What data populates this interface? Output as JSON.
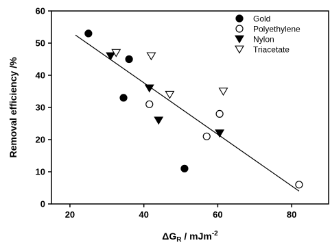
{
  "chart_data": {
    "type": "scatter",
    "title": "",
    "xlabel": "ΔG",
    "xlabel_sub": "R",
    "xlabel_unit": " / mJm",
    "xlabel_sup": "-2",
    "ylabel": "Removal efficiency /%",
    "xlim": [
      15,
      90
    ],
    "ylim": [
      0,
      60
    ],
    "x_ticks": [
      20,
      40,
      60,
      80
    ],
    "y_ticks": [
      0,
      10,
      20,
      30,
      40,
      50,
      60
    ],
    "grid": false,
    "legend_position": "top-right",
    "series": [
      {
        "name": "Gold",
        "marker": "circle-filled",
        "points": [
          [
            25,
            53
          ],
          [
            36,
            45
          ],
          [
            34.5,
            33
          ],
          [
            51,
            11
          ]
        ]
      },
      {
        "name": "Polyethylene",
        "marker": "circle-open",
        "points": [
          [
            41.5,
            31
          ],
          [
            60.5,
            28
          ],
          [
            57,
            21
          ],
          [
            82,
            6
          ]
        ]
      },
      {
        "name": "Nylon",
        "marker": "triangle-down-filled",
        "points": [
          [
            31,
            46
          ],
          [
            41.5,
            36
          ],
          [
            44,
            26
          ],
          [
            60.5,
            22
          ]
        ]
      },
      {
        "name": "Triacetate",
        "marker": "triangle-down-open",
        "points": [
          [
            32.5,
            47
          ],
          [
            42,
            46
          ],
          [
            47,
            34
          ],
          [
            61.5,
            35
          ]
        ]
      }
    ],
    "fit_line": {
      "x": [
        21.5,
        82
      ],
      "y": [
        52.5,
        4
      ]
    }
  }
}
